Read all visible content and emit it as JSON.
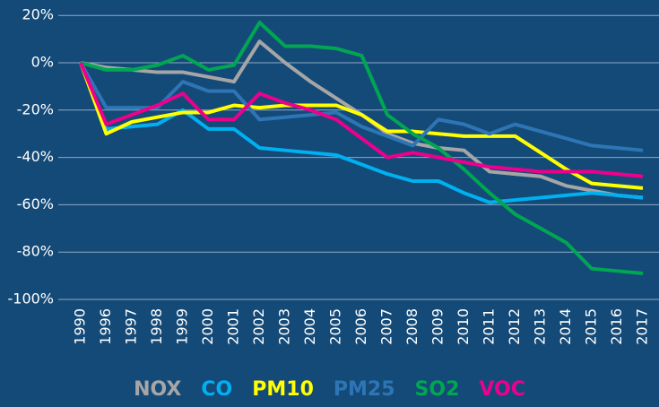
{
  "chart_data": {
    "type": "line",
    "categories": [
      "1990",
      "1996",
      "1997",
      "1998",
      "1999",
      "2000",
      "2001",
      "2002",
      "2003",
      "2004",
      "2005",
      "2006",
      "2007",
      "2008",
      "2009",
      "2010",
      "2011",
      "2012",
      "2013",
      "2014",
      "2015",
      "2016",
      "2017"
    ],
    "ylim": [
      -100,
      20
    ],
    "yticks": [
      {
        "value": 20,
        "label": "20%"
      },
      {
        "value": 0,
        "label": "0%"
      },
      {
        "value": -20,
        "label": "-20%"
      },
      {
        "value": -40,
        "label": "-40%"
      },
      {
        "value": -60,
        "label": "-60%"
      },
      {
        "value": -80,
        "label": "-80%"
      },
      {
        "value": -100,
        "label": "-100%"
      }
    ],
    "grid": true,
    "series": [
      {
        "name": "NOX",
        "color": "#a6a6a6",
        "values": [
          0,
          -2,
          -3,
          -4,
          -4,
          -6,
          -8,
          9,
          0,
          -8,
          -15,
          -22,
          -30,
          -34,
          -36,
          -37,
          -46,
          -47,
          -48,
          -52,
          -54,
          -56,
          -57
        ]
      },
      {
        "name": "CO",
        "color": "#00b0f0",
        "values": [
          0,
          -28,
          -27,
          -26,
          -20,
          -28,
          -28,
          -36,
          -37,
          -38,
          -39,
          -43,
          -47,
          -50,
          -50,
          -55,
          -59,
          -58,
          -57,
          -56,
          -55,
          -56,
          -57
        ]
      },
      {
        "name": "PM10",
        "color": "#ffff00",
        "values": [
          0,
          -30,
          -25,
          -23,
          -21,
          -21,
          -18,
          -19,
          -18,
          -18,
          -18,
          -22,
          -29,
          -29,
          -30,
          -31,
          -31,
          -31,
          -38,
          -45,
          -51,
          -52,
          -53
        ]
      },
      {
        "name": "PM25",
        "color": "#2e75b6",
        "values": [
          0,
          -19,
          -19,
          -19,
          -8,
          -12,
          -12,
          -24,
          -23,
          -22,
          -21,
          -27,
          -31,
          -35,
          -24,
          -26,
          -30,
          -26,
          -29,
          -32,
          -35,
          -36,
          -37
        ]
      },
      {
        "name": "SO2",
        "color": "#00a651",
        "values": [
          0,
          -3,
          -3,
          -1,
          3,
          -3,
          -1,
          17,
          7,
          7,
          6,
          3,
          -22,
          -30,
          -36,
          -45,
          -55,
          -64,
          -70,
          -76,
          -87,
          -88,
          -89
        ]
      },
      {
        "name": "VOC",
        "color": "#ec008c",
        "values": [
          0,
          -26,
          -22,
          -18,
          -13,
          -24,
          -24,
          -13,
          -17,
          -20,
          -24,
          -32,
          -40,
          -38,
          -40,
          -42,
          -44,
          -45,
          -46,
          -46,
          -46,
          -47,
          -48
        ]
      }
    ]
  }
}
